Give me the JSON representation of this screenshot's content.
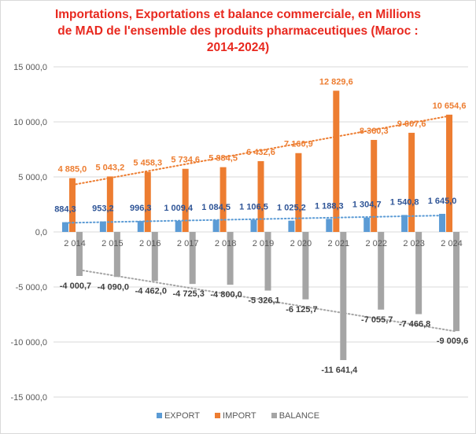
{
  "header": {
    "title_lines": [
      "Importations, Exportations et balance commerciale, en Millions",
      "de MAD de l'ensemble des produits pharmaceutiques (Maroc :",
      "2014-2024)"
    ]
  },
  "chart_data": {
    "type": "bar",
    "title": "",
    "xlabel": "",
    "ylabel": "",
    "ylim": [
      -15000,
      15000
    ],
    "yticks": [
      15000,
      10000,
      5000,
      0,
      -5000,
      -10000,
      -15000
    ],
    "ytick_labels": [
      "15 000,0",
      "10 000,0",
      "5 000,0",
      "0,0",
      "-5 000,0",
      "-10 000,0",
      "-15 000,0"
    ],
    "grid": true,
    "legend_position": "bottom",
    "trendlines": "linear, dotted, per series",
    "categories": [
      "2 014",
      "2 015",
      "2 016",
      "2 017",
      "2 018",
      "2 019",
      "2 020",
      "2 021",
      "2 022",
      "2 023",
      "2 024"
    ],
    "series": [
      {
        "name": "EXPORT",
        "color": "#5b9bd5",
        "label_color": "#2f5597",
        "values": [
          884.3,
          953.2,
          996.3,
          1009.4,
          1084.5,
          1106.5,
          1025.2,
          1188.3,
          1304.7,
          1540.8,
          1645.0
        ],
        "labels": [
          "884,3",
          "953,2",
          "996,3",
          "1 009,4",
          "1 084,5",
          "1 106,5",
          "1 025,2",
          "1 188,3",
          "1 304,7",
          "1 540,8",
          "1 645,0"
        ]
      },
      {
        "name": "IMPORT",
        "color": "#ed7d31",
        "label_color": "#ed7d31",
        "values": [
          4885.0,
          5043.2,
          5458.3,
          5734.6,
          5884.5,
          6432.6,
          7160.9,
          12829.6,
          8360.3,
          9007.6,
          10654.6
        ],
        "labels": [
          "4 885,0",
          "5 043,2",
          "5 458,3",
          "5 734,6",
          "5 884,5",
          "6 432,6",
          "7 160,9",
          "12 829,6",
          "8 360,3",
          "9 007,6",
          "10 654,6"
        ]
      },
      {
        "name": "BALANCE",
        "color": "#a5a5a5",
        "label_color": "#404040",
        "values": [
          -4000.7,
          -4090.0,
          -4462.0,
          -4725.3,
          -4800.0,
          -5326.1,
          -6125.7,
          -11641.4,
          -7055.7,
          -7466.8,
          -9009.6
        ],
        "labels": [
          "-4 000,7",
          "-4 090,0",
          "-4 462,0",
          "-4 725,3",
          "-4 800,0",
          "-5 326,1",
          "-6 125,7",
          "-11 641,4",
          "-7 055,7",
          "-7 466,8",
          "-9 009,6"
        ]
      }
    ]
  }
}
